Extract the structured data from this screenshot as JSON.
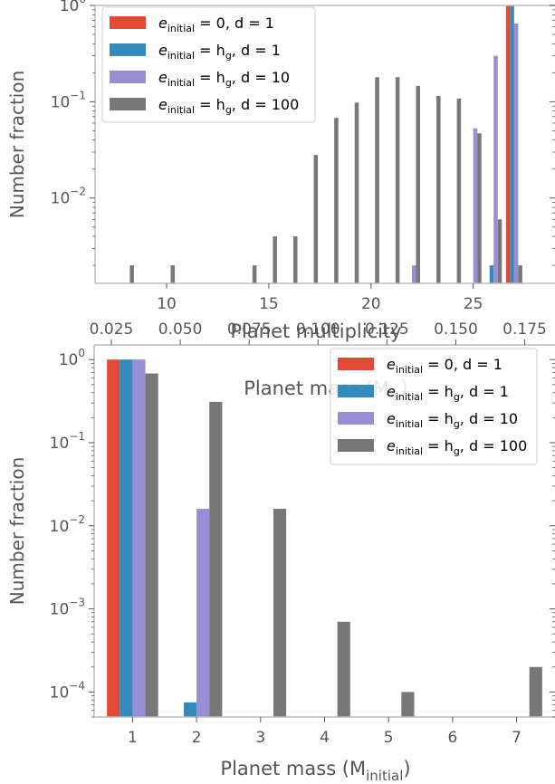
{
  "colors": {
    "red": "#e24a33",
    "blue": "#348abd",
    "purple": "#988ed5",
    "gray": "#777777",
    "axis": "#bcbcbc",
    "text": "#555555"
  },
  "chart_data": [
    {
      "type": "bar",
      "yscale": "log",
      "xlabel": "Planet multiplicity",
      "ylabel": "Number fraction",
      "xlim": [
        6.5,
        29
      ],
      "ylim": [
        0.0013,
        1.0
      ],
      "xticks": [
        "10",
        "15",
        "20",
        "25"
      ],
      "xtick_values": [
        10,
        15,
        20,
        25
      ],
      "yticks": [
        {
          "value": 1,
          "base": "10",
          "exp": "0"
        },
        {
          "value": 0.1,
          "base": "10",
          "exp": "−1"
        },
        {
          "value": 0.01,
          "base": "10",
          "exp": "−2"
        }
      ],
      "legend_position": "upper left",
      "series": [
        {
          "name_base": "e",
          "name_sub": "initial",
          "name_rest": " = 0, d = 1",
          "color": "red",
          "points": [
            [
              27,
              1.0
            ]
          ]
        },
        {
          "name_base": "e",
          "name_sub": "initial",
          "name_rest": " = h",
          "name_sub2": "g",
          "name_tail": ", d = 1",
          "color": "blue",
          "points": [
            [
              26,
              0.002
            ],
            [
              27,
              1.0
            ]
          ]
        },
        {
          "name_base": "e",
          "name_sub": "initial",
          "name_rest": " = h",
          "name_sub2": "g",
          "name_tail": ", d = 10",
          "color": "purple",
          "points": [
            [
              22,
              0.002
            ],
            [
              25,
              0.053
            ],
            [
              26,
              0.3
            ],
            [
              27,
              0.65
            ]
          ]
        },
        {
          "name_base": "e",
          "name_sub": "initial",
          "name_rest": " = h",
          "name_sub2": "g",
          "name_tail": ", d = 100",
          "color": "gray",
          "points": [
            [
              8,
              0.002
            ],
            [
              10,
              0.002
            ],
            [
              14,
              0.002
            ],
            [
              15,
              0.004
            ],
            [
              16,
              0.004
            ],
            [
              17,
              0.028
            ],
            [
              18,
              0.068
            ],
            [
              19,
              0.098
            ],
            [
              20,
              0.18
            ],
            [
              21,
              0.18
            ],
            [
              22,
              0.146
            ],
            [
              23,
              0.115
            ],
            [
              24,
              0.108
            ],
            [
              25,
              0.047
            ],
            [
              26,
              0.006
            ],
            [
              27,
              0.002
            ]
          ]
        }
      ]
    },
    {
      "type": "bar",
      "yscale": "log",
      "xlabel_base": "Planet mass (M",
      "xlabel_sub": "initial",
      "xlabel_tail": ")",
      "ylabel": "Number fraction",
      "top_xlabel_base": "Planet mass (M",
      "top_xlabel_sub": "⊕",
      "top_xlabel_tail": ")",
      "xlim": [
        0.4,
        7.6
      ],
      "ylim": [
        5e-05,
        1.5
      ],
      "xticks": [
        "1",
        "2",
        "3",
        "4",
        "5",
        "6",
        "7"
      ],
      "xtick_values": [
        1,
        2,
        3,
        4,
        5,
        6,
        7
      ],
      "top_xticks": [
        "0.025",
        "0.050",
        "0.075",
        "0.100",
        "0.125",
        "0.150",
        "0.175"
      ],
      "top_xtick_values": [
        0.025,
        0.05,
        0.075,
        0.1,
        0.125,
        0.15,
        0.175
      ],
      "yticks": [
        {
          "value": 1,
          "base": "10",
          "exp": "0"
        },
        {
          "value": 0.1,
          "base": "10",
          "exp": "−1"
        },
        {
          "value": 0.01,
          "base": "10",
          "exp": "−2"
        },
        {
          "value": 0.001,
          "base": "10",
          "exp": "−3"
        },
        {
          "value": 0.0001,
          "base": "10",
          "exp": "−4"
        }
      ],
      "legend_position": "upper right",
      "series": [
        {
          "name_base": "e",
          "name_sub": "initial",
          "name_rest": " = 0, d = 1",
          "color": "red",
          "points": [
            [
              1,
              1.0
            ]
          ]
        },
        {
          "name_base": "e",
          "name_sub": "initial",
          "name_rest": " = h",
          "name_sub2": "g",
          "name_tail": ", d = 1",
          "color": "blue",
          "points": [
            [
              1,
              1.0
            ],
            [
              2,
              7.5e-05
            ]
          ]
        },
        {
          "name_base": "e",
          "name_sub": "initial",
          "name_rest": " = h",
          "name_sub2": "g",
          "name_tail": ", d = 10",
          "color": "purple",
          "points": [
            [
              1,
              1.0
            ],
            [
              2,
              0.016
            ]
          ]
        },
        {
          "name_base": "e",
          "name_sub": "initial",
          "name_rest": " = h",
          "name_sub2": "g",
          "name_tail": ", d = 100",
          "color": "gray",
          "points": [
            [
              1,
              0.68
            ],
            [
              2,
              0.31
            ],
            [
              3,
              0.016
            ],
            [
              4,
              0.0007
            ],
            [
              5,
              0.0001
            ],
            [
              7,
              0.0002
            ]
          ]
        }
      ]
    }
  ]
}
